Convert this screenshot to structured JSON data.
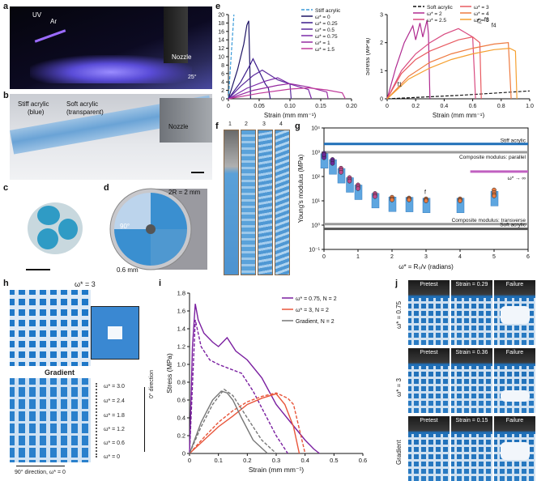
{
  "panels": {
    "a": {
      "letter": "a",
      "uv_label": "UV",
      "ar_label": "Ar",
      "nozzle_label": "Nozzle",
      "angle_label": "25°"
    },
    "b": {
      "letter": "b",
      "stiff_label_1": "Stiff acrylic",
      "stiff_label_2": "(blue)",
      "soft_label_1": "Soft acrylic",
      "soft_label_2": "(transparent)",
      "nozzle_label": "Nozzle"
    },
    "c": {
      "letter": "c"
    },
    "d": {
      "letter": "d",
      "radius_label": "2R = 2 mm",
      "angle_label": "90°",
      "thickness_label": "0.6 mm"
    },
    "e": {
      "letter": "e"
    },
    "f": {
      "letter": "f",
      "tube_numbers": [
        "1",
        "2",
        "3",
        "4"
      ]
    },
    "g": {
      "letter": "g",
      "stiff_ref": "Stiff acrylic",
      "parallel_ref": "Composite modulus: parallel",
      "limit_label": "ω* → ∞",
      "transverse_ref": "Composite modulus: transverse",
      "soft_ref": "Soft acrylic",
      "f_marker": "f"
    },
    "h": {
      "letter": "h",
      "top_title": "ω* = 3",
      "bottom_title": "Gradient",
      "gradient_levels": [
        "ω* = 3.0",
        "ω* = 2.4",
        "ω* = 1.8",
        "ω* = 1.2",
        "ω* = 0.6",
        "ω* = 0"
      ],
      "zero_dir": "0° direction",
      "ninety_dir": "90° direction, ω* = 0"
    },
    "i": {
      "letter": "i"
    },
    "j": {
      "letter": "j",
      "rows": [
        {
          "row_label": "ω* = 0.75",
          "tiles": [
            "Pretest",
            "Strain = 0.29",
            "Failure"
          ]
        },
        {
          "row_label": "ω* = 3",
          "tiles": [
            "Pretest",
            "Strain = 0.36",
            "Failure"
          ]
        },
        {
          "row_label": "Gradient",
          "tiles": [
            "Pretest",
            "Strain = 0.15",
            "Failure"
          ]
        }
      ]
    }
  },
  "chart_data": [
    {
      "id": "e-left",
      "type": "line",
      "xlabel": "Strain (mm mm⁻¹)",
      "ylabel": "Stress (MPa)",
      "xlim": [
        0,
        0.2
      ],
      "ylim": [
        0,
        20
      ],
      "xticks": [
        "0",
        "0.05",
        "0.10",
        "0.15",
        "0.20"
      ],
      "yticks": [
        "0",
        "2",
        "4",
        "6",
        "8",
        "10",
        "12",
        "14",
        "16",
        "18",
        "20"
      ],
      "series": [
        {
          "name": "Stiff acrylic",
          "color": "#3a9ad9",
          "dashed": true,
          "x": [
            0,
            0.004,
            0.009
          ],
          "y": [
            0,
            9,
            20
          ]
        },
        {
          "name": "ω* = 0",
          "color": "#1e1464",
          "x": [
            0,
            0.015,
            0.025,
            0.03,
            0.033,
            0.036
          ],
          "y": [
            0,
            7,
            13,
            17.5,
            18.5,
            0
          ]
        },
        {
          "name": "ω* = 0.25",
          "color": "#3a1a8a",
          "x": [
            0,
            0.02,
            0.035,
            0.04,
            0.06,
            0.065,
            0.068
          ],
          "y": [
            0,
            4,
            8,
            9.5,
            3.5,
            2.5,
            0
          ]
        },
        {
          "name": "ω* = 0.5",
          "color": "#5a2a9c",
          "x": [
            0,
            0.02,
            0.04,
            0.055,
            0.08,
            0.1,
            0.102
          ],
          "y": [
            0,
            3,
            5.5,
            6.8,
            4.5,
            3.5,
            0
          ]
        },
        {
          "name": "ω* = 0.75",
          "color": "#7a2aa8",
          "x": [
            0,
            0.03,
            0.06,
            0.08,
            0.1,
            0.13,
            0.135
          ],
          "y": [
            0,
            2.5,
            4.2,
            5,
            3.5,
            2.2,
            0
          ]
        },
        {
          "name": "ω* = 1",
          "color": "#952aa0",
          "x": [
            0,
            0.04,
            0.08,
            0.1,
            0.13,
            0.16,
            0.162
          ],
          "y": [
            0,
            2,
            3.2,
            3.6,
            2.8,
            1.6,
            0
          ]
        },
        {
          "name": "ω* = 1.5",
          "color": "#c03a9a",
          "x": [
            0,
            0.05,
            0.1,
            0.13,
            0.16,
            0.185,
            0.19
          ],
          "y": [
            0,
            1.3,
            2.3,
            2.6,
            2.1,
            1.4,
            0
          ]
        }
      ]
    },
    {
      "id": "e-right",
      "type": "line",
      "xlabel": "Strain (mm mm⁻¹)",
      "ylabel": "Stress (MPa)",
      "xlim": [
        0,
        1.0
      ],
      "ylim": [
        0,
        3
      ],
      "xticks": [
        "0",
        "0.2",
        "0.4",
        "0.6",
        "0.8",
        "1.0"
      ],
      "yticks": [
        "0",
        "1",
        "2",
        "3"
      ],
      "annotations": [
        "f1",
        "f2",
        "f3",
        "f4"
      ],
      "series": [
        {
          "name": "Soft acrylic",
          "color": "#111111",
          "dashed": true,
          "x": [
            0,
            0.5,
            1.0
          ],
          "y": [
            0,
            0.12,
            0.28
          ]
        },
        {
          "name": "ω* = 2",
          "color": "#b02a90",
          "x": [
            0,
            0.06,
            0.12,
            0.18,
            0.2,
            0.23,
            0.25,
            0.28,
            0.29,
            0.3
          ],
          "y": [
            0,
            1.1,
            2.0,
            2.6,
            2.1,
            2.7,
            2.2,
            2.8,
            2.3,
            0
          ]
        },
        {
          "name": "ω* = 2.5",
          "color": "#d84a80",
          "x": [
            0,
            0.1,
            0.2,
            0.3,
            0.4,
            0.5,
            0.55,
            0.6,
            0.62
          ],
          "y": [
            0,
            1.0,
            1.6,
            2.0,
            2.3,
            2.5,
            2.35,
            2.2,
            0
          ]
        },
        {
          "name": "ω* = 3",
          "color": "#e85a60",
          "x": [
            0,
            0.1,
            0.2,
            0.3,
            0.4,
            0.5,
            0.6,
            0.65,
            0.66
          ],
          "y": [
            0,
            0.9,
            1.4,
            1.7,
            1.9,
            2.1,
            2.2,
            2.0,
            0
          ]
        },
        {
          "name": "ω* = 4",
          "color": "#ee7a40",
          "x": [
            0,
            0.15,
            0.3,
            0.45,
            0.6,
            0.75,
            0.85,
            0.87
          ],
          "y": [
            0,
            0.8,
            1.3,
            1.6,
            1.8,
            1.95,
            2.0,
            0
          ]
        },
        {
          "name": "ω* = 5",
          "color": "#f5a030",
          "x": [
            0,
            0.15,
            0.3,
            0.45,
            0.6,
            0.75,
            0.86,
            0.9,
            0.91
          ],
          "y": [
            0,
            0.7,
            1.1,
            1.4,
            1.6,
            1.75,
            1.8,
            1.7,
            0
          ]
        }
      ]
    },
    {
      "id": "g",
      "type": "scatter",
      "xlabel": "ω* = R₀/v (radians)",
      "ylabel": "Young’s modulus (MPa)",
      "xlim": [
        0,
        6
      ],
      "ylim": [
        0.1,
        10000
      ],
      "yscale": "log",
      "xticks": [
        "0",
        "1",
        "2",
        "3",
        "4",
        "5",
        "6"
      ],
      "yticks": [
        "10⁻¹",
        "10⁰",
        "10¹",
        "10²",
        "10³",
        "10⁴"
      ],
      "reference_lines": [
        {
          "name": "Stiff acrylic",
          "value": 2200
        },
        {
          "name": "Composite modulus: parallel",
          "value": 1000
        },
        {
          "name": "ω* → ∞",
          "value": 160
        },
        {
          "name": "Composite modulus: transverse",
          "value": 1.1
        },
        {
          "name": "Soft acrylic",
          "value": 0.7
        }
      ],
      "points": [
        {
          "x": 0,
          "y": [
            900,
            700,
            600,
            800
          ]
        },
        {
          "x": 0.25,
          "y": [
            500,
            420,
            350
          ]
        },
        {
          "x": 0.5,
          "y": [
            220,
            180,
            150
          ]
        },
        {
          "x": 0.75,
          "y": [
            90,
            75,
            65
          ]
        },
        {
          "x": 1,
          "y": [
            45,
            38,
            32
          ]
        },
        {
          "x": 1.5,
          "y": [
            20,
            17,
            15
          ]
        },
        {
          "x": 2,
          "y": [
            14,
            12,
            11
          ]
        },
        {
          "x": 2.5,
          "y": [
            13,
            12,
            11
          ]
        },
        {
          "x": 3,
          "y": [
            12,
            11,
            10
          ]
        },
        {
          "x": 4,
          "y": [
            12,
            11,
            10
          ]
        },
        {
          "x": 5,
          "y": [
            28,
            22,
            18,
            16
          ]
        }
      ]
    },
    {
      "id": "i",
      "type": "line",
      "xlabel": "Strain (mm mm⁻¹)",
      "ylabel": "Stress (MPa)",
      "xlim": [
        0,
        0.6
      ],
      "ylim": [
        0,
        1.8
      ],
      "xticks": [
        "0",
        "0.1",
        "0.2",
        "0.3",
        "0.4",
        "0.5",
        "0.6"
      ],
      "yticks": [
        "0",
        "0.2",
        "0.4",
        "0.6",
        "0.8",
        "1.0",
        "1.2",
        "1.4",
        "1.6",
        "1.8"
      ],
      "series": [
        {
          "name": "ω* = 0.75, N = 2",
          "color": "#7a1fa0",
          "x": [
            0,
            0.01,
            0.02,
            0.03,
            0.05,
            0.08,
            0.1,
            0.13,
            0.16,
            0.2,
            0.25,
            0.3,
            0.35,
            0.4,
            0.43,
            0.45
          ],
          "y": [
            0,
            1.2,
            1.68,
            1.5,
            1.35,
            1.25,
            1.2,
            1.3,
            1.15,
            1.05,
            0.85,
            0.55,
            0.35,
            0.15,
            0.05,
            0
          ]
        },
        {
          "name": "ω* = 0.75, N = 2 (replicate)",
          "color": "#7a1fa0",
          "dashed": true,
          "x": [
            0,
            0.02,
            0.04,
            0.07,
            0.1,
            0.14,
            0.18,
            0.22,
            0.26,
            0.3,
            0.34
          ],
          "y": [
            0,
            1.5,
            1.2,
            1.05,
            1.0,
            0.95,
            0.9,
            0.7,
            0.45,
            0.2,
            0
          ]
        },
        {
          "name": "ω* = 3, N = 2",
          "color": "#e8553a",
          "x": [
            0,
            0.05,
            0.1,
            0.15,
            0.2,
            0.25,
            0.3,
            0.33,
            0.36,
            0.38
          ],
          "y": [
            0,
            0.15,
            0.3,
            0.42,
            0.55,
            0.62,
            0.67,
            0.55,
            0.3,
            0
          ]
        },
        {
          "name": "ω* = 3, N = 2 (replicate)",
          "color": "#e8553a",
          "dashed": true,
          "x": [
            0,
            0.05,
            0.1,
            0.15,
            0.2,
            0.25,
            0.3,
            0.34,
            0.36,
            0.4
          ],
          "y": [
            0,
            0.18,
            0.35,
            0.48,
            0.58,
            0.64,
            0.68,
            0.62,
            0.55,
            0
          ]
        },
        {
          "name": "Gradient, N = 2",
          "color": "#777777",
          "x": [
            0,
            0.04,
            0.08,
            0.11,
            0.13,
            0.15,
            0.18,
            0.22,
            0.27
          ],
          "y": [
            0,
            0.35,
            0.6,
            0.7,
            0.68,
            0.6,
            0.4,
            0.15,
            0
          ]
        },
        {
          "name": "Gradient, N = 2 (replicate)",
          "color": "#777777",
          "dashed": true,
          "x": [
            0,
            0.04,
            0.08,
            0.12,
            0.15,
            0.2,
            0.25,
            0.3
          ],
          "y": [
            0,
            0.3,
            0.55,
            0.72,
            0.65,
            0.4,
            0.15,
            0
          ]
        }
      ]
    }
  ]
}
